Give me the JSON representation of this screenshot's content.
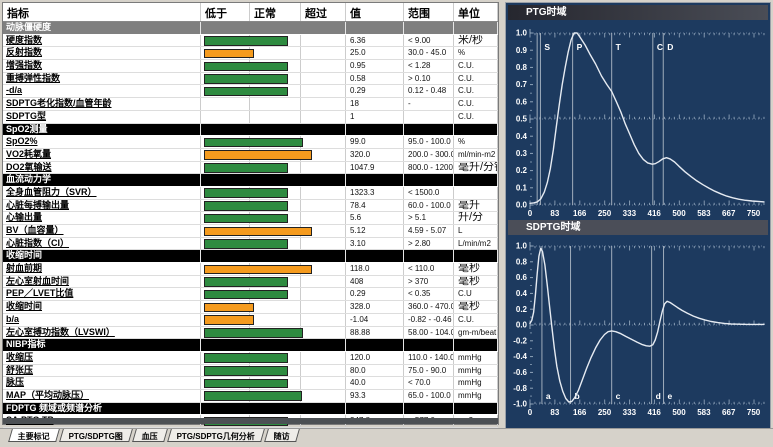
{
  "colors": {
    "green": "#2e8b40",
    "orange": "#f59b1e",
    "navy": "#1d3a5f",
    "curve": "#e6ebf2",
    "grid": "#9db0c4",
    "marker": "#b7c2cd"
  },
  "table": {
    "headers": [
      "指标",
      "低于",
      "正常",
      "超过",
      "值",
      "范围",
      "单位"
    ],
    "rows": [
      {
        "type": "section",
        "label": "动脉僵硬度",
        "variant": "gray"
      },
      {
        "type": "data",
        "label": "硬度指数",
        "bar": "green",
        "len": 0.57,
        "value": "6.36",
        "range": "< 9.00",
        "unit": "米/秒",
        "big_unit": true
      },
      {
        "type": "data",
        "label": "反射指数",
        "bar": "orange",
        "len": 0.335,
        "value": "25.0",
        "range": "30.0 - 45.0",
        "unit": "%"
      },
      {
        "type": "data",
        "label": "增强指数",
        "bar": "green",
        "len": 0.57,
        "value": "0.95",
        "range": "< 1.28",
        "unit": "C.U."
      },
      {
        "type": "data",
        "label": "重搏弹性指数",
        "bar": "green",
        "len": 0.57,
        "value": "0.58",
        "range": "> 0.10",
        "unit": "C.U."
      },
      {
        "type": "data",
        "label": "-d/a",
        "bar": "green",
        "len": 0.57,
        "value": "0.29",
        "range": "0.12 - 0.48",
        "unit": "C.U."
      },
      {
        "type": "data",
        "label": "SDPTG老化指数/血管年龄",
        "value": "18",
        "range": "-",
        "unit": "C.U."
      },
      {
        "type": "data",
        "label": "SDPTG型",
        "value": "1",
        "range": "",
        "unit": "C.U."
      },
      {
        "type": "section",
        "label": "SpO2测量",
        "variant": "black"
      },
      {
        "type": "data",
        "label": "SpO2%",
        "bar": "green",
        "len": 0.68,
        "value": "99.0",
        "range": "95.0 - 100.0",
        "unit": "%"
      },
      {
        "type": "data",
        "label": "VO2耗氧量",
        "bar": "orange",
        "len": 0.74,
        "value": "320.0",
        "range": "200.0 - 300.0",
        "unit": "ml/min-m2"
      },
      {
        "type": "data",
        "label": "DO2氧输送",
        "bar": "green",
        "len": 0.57,
        "value": "1047.9",
        "range": "800.0 - 1200.0",
        "unit": "毫升/分钟",
        "big_unit": true
      },
      {
        "type": "section",
        "label": "血流动力学",
        "variant": "black"
      },
      {
        "type": "data",
        "label": "全身血管阻力（SVR）",
        "bar": "green",
        "len": 0.57,
        "value": "1323.3",
        "range": "< 1500.0",
        "unit": ""
      },
      {
        "type": "data",
        "label": "心脏每搏输出量",
        "bar": "green",
        "len": 0.57,
        "value": "78.4",
        "range": "60.0 - 100.0",
        "unit": "毫升",
        "big_unit": true
      },
      {
        "type": "data",
        "label": "心输出量",
        "bar": "green",
        "len": 0.57,
        "value": "5.6",
        "range": "> 5.1",
        "unit": "升/分",
        "big_unit": true
      },
      {
        "type": "data",
        "label": "BV（血容量）",
        "bar": "orange",
        "len": 0.74,
        "value": "5.12",
        "range": "4.59 - 5.07",
        "unit": "L"
      },
      {
        "type": "data",
        "label": "心脏指数（CI）",
        "bar": "green",
        "len": 0.57,
        "value": "3.10",
        "range": "> 2.80",
        "unit": "L/min/m2"
      },
      {
        "type": "section",
        "label": "收缩时间",
        "variant": "black"
      },
      {
        "type": "data",
        "label": "射血前期",
        "bar": "orange",
        "len": 0.74,
        "value": "118.0",
        "range": "< 110.0",
        "unit": "毫秒",
        "big_unit": true
      },
      {
        "type": "data",
        "label": "左心室射血时间",
        "bar": "green",
        "len": 0.57,
        "value": "408",
        "range": "> 370",
        "unit": "毫秒",
        "big_unit": true
      },
      {
        "type": "data",
        "label": "PEP／LVET比值",
        "bar": "green",
        "len": 0.57,
        "value": "0.29",
        "range": "< 0.35",
        "unit": "C.U"
      },
      {
        "type": "data",
        "label": "收缩时间",
        "bar": "orange",
        "len": 0.335,
        "value": "328.0",
        "range": "360.0 - 470.0",
        "unit": "毫秒",
        "big_unit": true
      },
      {
        "type": "data",
        "label": "b/a",
        "bar": "orange",
        "len": 0.335,
        "value": "-1.04",
        "range": "-0.82 - -0.46",
        "unit": "C.U."
      },
      {
        "type": "data",
        "label": "左心室搏功指数（LVSWI）",
        "bar": "green",
        "len": 0.68,
        "value": "88.88",
        "range": "58.00 - 104.00",
        "unit": "gm-m/beat"
      },
      {
        "type": "section",
        "label": "NIBP指标",
        "variant": "black"
      },
      {
        "type": "data",
        "label": "收缩压",
        "bar": "green",
        "len": 0.57,
        "value": "120.0",
        "range": "110.0 - 140.0",
        "unit": "mmHg"
      },
      {
        "type": "data",
        "label": "舒张压",
        "bar": "green",
        "len": 0.57,
        "value": "80.0",
        "range": "75.0 - 90.0",
        "unit": "mmHg"
      },
      {
        "type": "data",
        "label": "脉压",
        "bar": "green",
        "len": 0.57,
        "value": "40.0",
        "range": "< 70.0",
        "unit": "mmHg"
      },
      {
        "type": "data",
        "label": "MAP（平均动脉压）",
        "bar": "green",
        "len": 0.67,
        "value": "93.3",
        "range": "65.0 - 100.0",
        "unit": "mmHg"
      },
      {
        "type": "section",
        "label": "FDPTG 频域或频谱分析",
        "variant": "black"
      },
      {
        "type": "data",
        "label": "SA.PTG TP",
        "bar": "green",
        "len": 0.57,
        "value": "347.8",
        "range": "< 577.0",
        "unit": "ms2"
      },
      {
        "type": "data",
        "label": "SA.PTG 低频",
        "bar": "green",
        "len": 0.57,
        "value": "48.8",
        "range": "< 120.0",
        "unit": "ms2"
      },
      {
        "type": "data",
        "label": "SA.PTG 极低频",
        "bar": "green",
        "len": 0.57,
        "value": "94.1",
        "range": "< 150.0",
        "unit": "ms2"
      }
    ]
  },
  "tabs": [
    {
      "label": "主要标记",
      "active": true
    },
    {
      "label": "PTG/SDPTG图",
      "active": false
    },
    {
      "label": "血压",
      "active": false
    },
    {
      "label": "PTG/SDPTG几何分析",
      "active": false
    },
    {
      "label": "随访",
      "active": false
    }
  ],
  "chart_data": [
    {
      "type": "line",
      "title": "PTG时域",
      "ylim": [
        0,
        1
      ],
      "ylabel_step": 0.1,
      "major_lines": [
        1.0,
        0.5,
        0.0
      ],
      "xlim": [
        0,
        785
      ],
      "xticks": [
        {
          "v": 0,
          "label": "0"
        },
        {
          "v": 83.3,
          "label": "83"
        },
        {
          "v": 166.7,
          "label": "166"
        },
        {
          "v": 250,
          "label": "250"
        },
        {
          "v": 333.3,
          "label": "333"
        },
        {
          "v": 416.7,
          "label": "416"
        },
        {
          "v": 500,
          "label": "500"
        },
        {
          "v": 583.3,
          "label": "583"
        },
        {
          "v": 666.7,
          "label": "667"
        },
        {
          "v": 750,
          "label": "750"
        }
      ],
      "markers": [
        {
          "x": 24,
          "label": ""
        },
        {
          "x": 35,
          "label": "S"
        },
        {
          "x": 143,
          "label": "P"
        },
        {
          "x": 274,
          "label": "T"
        },
        {
          "x": 412,
          "label": "C"
        },
        {
          "x": 447,
          "label": "D"
        }
      ],
      "marker_label_y": 0.92,
      "series": [
        {
          "name": "PTG",
          "points": [
            [
              0,
              0.01
            ],
            [
              12,
              0.012
            ],
            [
              24,
              0.018
            ],
            [
              36,
              0.035
            ],
            [
              48,
              0.075
            ],
            [
              58,
              0.13
            ],
            [
              68,
              0.21
            ],
            [
              78,
              0.32
            ],
            [
              88,
              0.45
            ],
            [
              98,
              0.58
            ],
            [
              108,
              0.7
            ],
            [
              118,
              0.8
            ],
            [
              128,
              0.89
            ],
            [
              138,
              0.96
            ],
            [
              148,
              1.0
            ],
            [
              158,
              1.0
            ],
            [
              170,
              0.97
            ],
            [
              185,
              0.93
            ],
            [
              200,
              0.88
            ],
            [
              220,
              0.82
            ],
            [
              240,
              0.75
            ],
            [
              258,
              0.7
            ],
            [
              274,
              0.66
            ],
            [
              290,
              0.6
            ],
            [
              305,
              0.54
            ],
            [
              320,
              0.47
            ],
            [
              335,
              0.41
            ],
            [
              350,
              0.35
            ],
            [
              365,
              0.3
            ],
            [
              380,
              0.265
            ],
            [
              395,
              0.245
            ],
            [
              410,
              0.237
            ],
            [
              420,
              0.24
            ],
            [
              432,
              0.252
            ],
            [
              445,
              0.268
            ],
            [
              458,
              0.275
            ],
            [
              470,
              0.268
            ],
            [
              485,
              0.25
            ],
            [
              500,
              0.225
            ],
            [
              520,
              0.193
            ],
            [
              540,
              0.165
            ],
            [
              560,
              0.14
            ],
            [
              580,
              0.118
            ],
            [
              600,
              0.098
            ],
            [
              620,
              0.08
            ],
            [
              640,
              0.065
            ],
            [
              660,
              0.052
            ],
            [
              680,
              0.042
            ],
            [
              700,
              0.034
            ],
            [
              720,
              0.028
            ],
            [
              745,
              0.023
            ],
            [
              785,
              0.018
            ]
          ]
        }
      ]
    },
    {
      "type": "line",
      "title": "SDPTG时域",
      "ylim": [
        -1,
        1
      ],
      "ylabel_step": 0.2,
      "major_lines": [
        1.0,
        0.0,
        -1.0
      ],
      "xlim": [
        0,
        785
      ],
      "xticks": [
        {
          "v": 0,
          "label": "0"
        },
        {
          "v": 83.3,
          "label": "83"
        },
        {
          "v": 166.7,
          "label": "166"
        },
        {
          "v": 250,
          "label": "250"
        },
        {
          "v": 333.3,
          "label": "333"
        },
        {
          "v": 416.7,
          "label": "416"
        },
        {
          "v": 500,
          "label": "500"
        },
        {
          "v": 583.3,
          "label": "583"
        },
        {
          "v": 666.7,
          "label": "667"
        },
        {
          "v": 750,
          "label": "750"
        }
      ],
      "markers": [
        {
          "x": 40,
          "label": "a"
        },
        {
          "x": 136,
          "label": "b"
        },
        {
          "x": 274,
          "label": "c"
        },
        {
          "x": 408,
          "label": "d"
        },
        {
          "x": 448,
          "label": "e"
        }
      ],
      "marker_label_y": -0.9,
      "series": [
        {
          "name": "SDPTG",
          "points": [
            [
              0,
              0.02
            ],
            [
              6,
              0.06
            ],
            [
              12,
              0.16
            ],
            [
              18,
              0.38
            ],
            [
              24,
              0.65
            ],
            [
              30,
              0.87
            ],
            [
              36,
              0.97
            ],
            [
              42,
              0.93
            ],
            [
              50,
              0.76
            ],
            [
              58,
              0.5
            ],
            [
              66,
              0.22
            ],
            [
              74,
              -0.05
            ],
            [
              82,
              -0.3
            ],
            [
              90,
              -0.52
            ],
            [
              100,
              -0.71
            ],
            [
              110,
              -0.84
            ],
            [
              120,
              -0.93
            ],
            [
              130,
              -0.975
            ],
            [
              140,
              -0.97
            ],
            [
              150,
              -0.92
            ],
            [
              162,
              -0.83
            ],
            [
              175,
              -0.7
            ],
            [
              190,
              -0.55
            ],
            [
              205,
              -0.41
            ],
            [
              220,
              -0.29
            ],
            [
              235,
              -0.19
            ],
            [
              250,
              -0.12
            ],
            [
              262,
              -0.085
            ],
            [
              274,
              -0.075
            ],
            [
              288,
              -0.085
            ],
            [
              305,
              -0.11
            ],
            [
              322,
              -0.145
            ],
            [
              340,
              -0.18
            ],
            [
              358,
              -0.215
            ],
            [
              375,
              -0.245
            ],
            [
              390,
              -0.263
            ],
            [
              402,
              -0.268
            ],
            [
              412,
              -0.25
            ],
            [
              420,
              -0.19
            ],
            [
              428,
              -0.09
            ],
            [
              436,
              0.05
            ],
            [
              444,
              0.18
            ],
            [
              452,
              0.27
            ],
            [
              460,
              0.3
            ],
            [
              470,
              0.285
            ],
            [
              482,
              0.255
            ],
            [
              495,
              0.22
            ],
            [
              510,
              0.185
            ],
            [
              528,
              0.148
            ],
            [
              548,
              0.113
            ],
            [
              568,
              0.085
            ],
            [
              588,
              0.062
            ],
            [
              608,
              0.044
            ],
            [
              630,
              0.03
            ],
            [
              652,
              0.02
            ],
            [
              675,
              0.013
            ],
            [
              700,
              0.01
            ],
            [
              730,
              0.008
            ],
            [
              785,
              0.008
            ]
          ]
        }
      ]
    }
  ]
}
